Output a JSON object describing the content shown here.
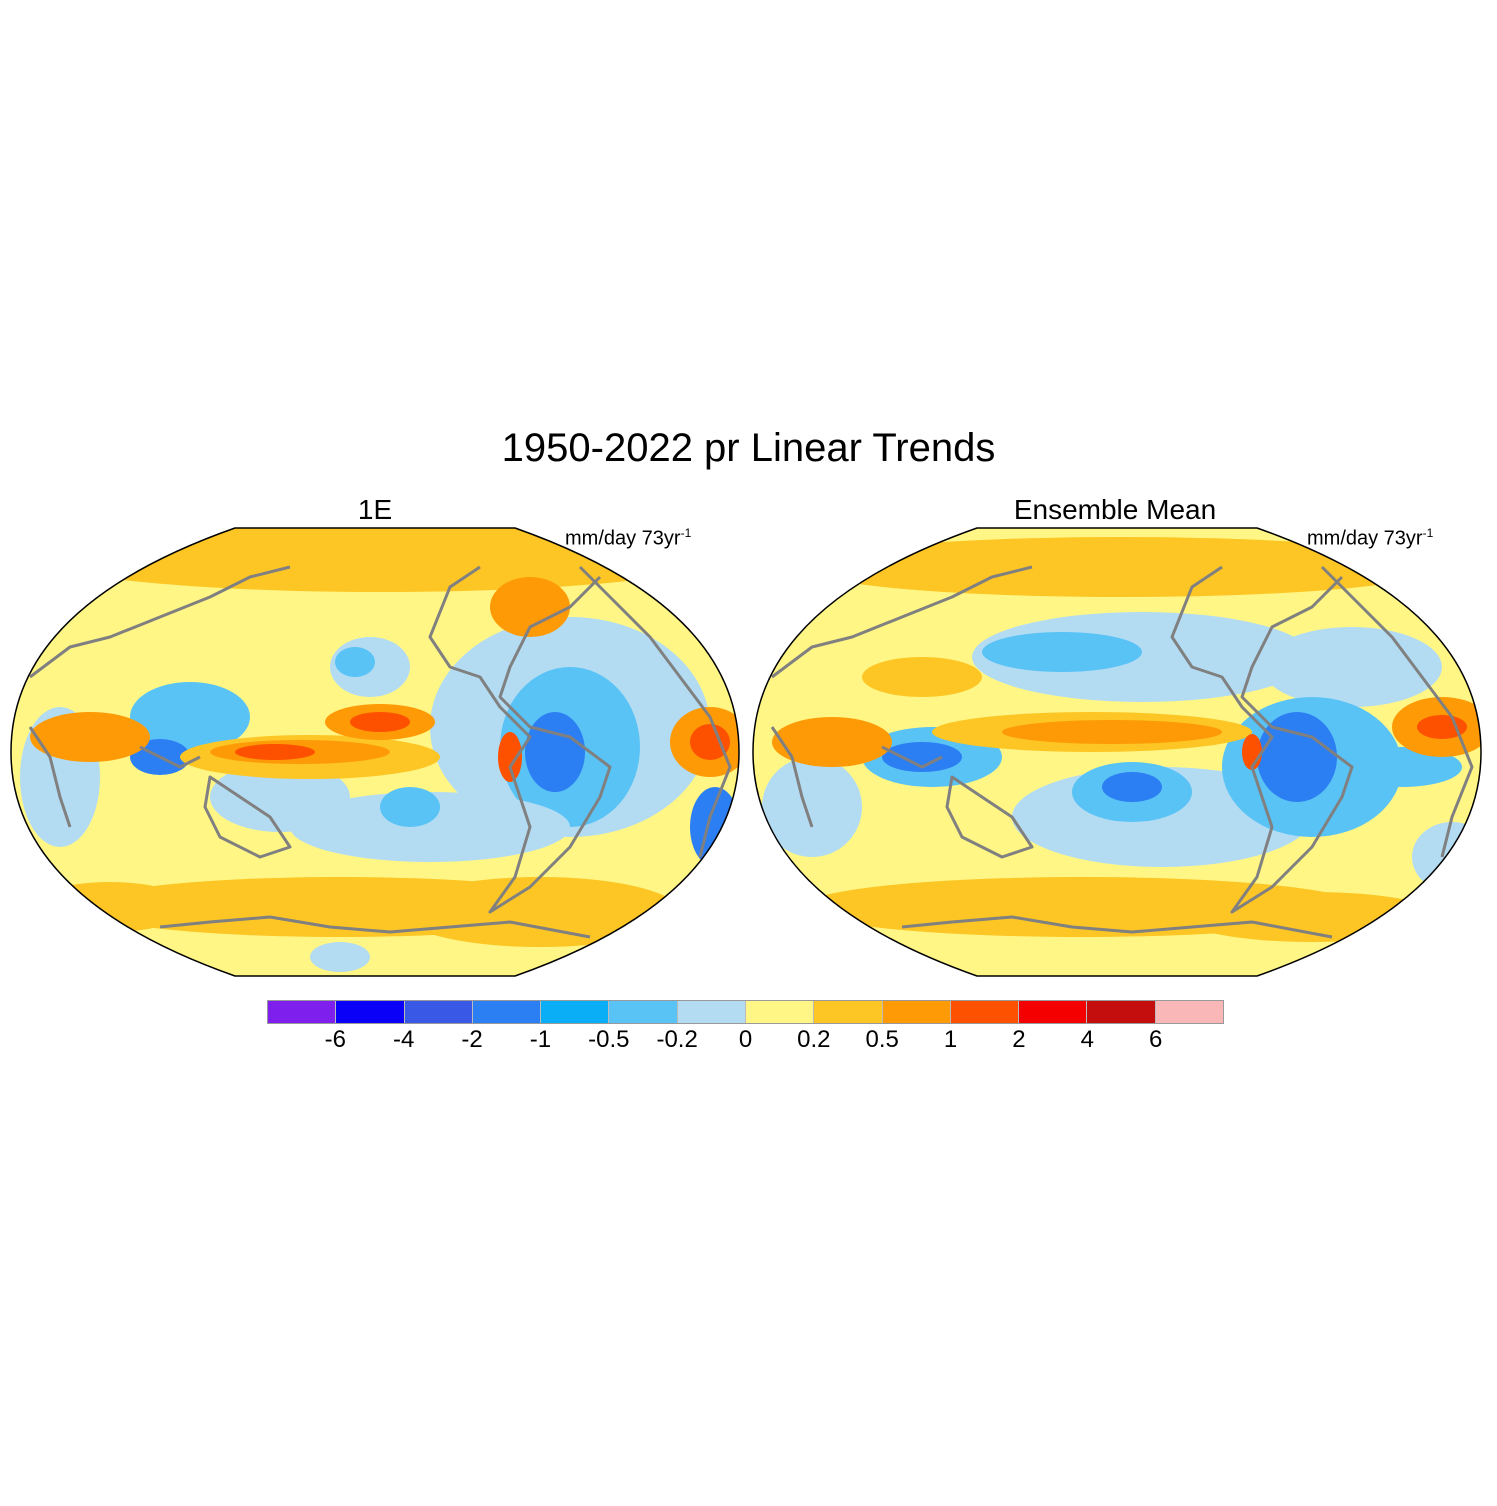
{
  "title": "1950-2022 pr Linear Trends",
  "panels": [
    {
      "title": "1E",
      "units": "mm/day 73yr",
      "units_exp": "-1"
    },
    {
      "title": "Ensemble Mean",
      "units": "mm/day 73yr",
      "units_exp": "-1"
    }
  ],
  "colorbar": {
    "colors": [
      "#7f1fee",
      "#0a00f7",
      "#3a58e6",
      "#2c7ef3",
      "#0aaef7",
      "#59c3f5",
      "#b3dcf3",
      "#fff685",
      "#fdc624",
      "#fd9a06",
      "#fe5100",
      "#f50000",
      "#c40e0e",
      "#fab7b7"
    ],
    "labels": [
      "-6",
      "-4",
      "-2",
      "-1",
      "-0.5",
      "-0.2",
      "0",
      "0.2",
      "0.5",
      "1",
      "2",
      "4",
      "6"
    ]
  },
  "coastline_color": "#808080",
  "map_background_color": "#fff685"
}
